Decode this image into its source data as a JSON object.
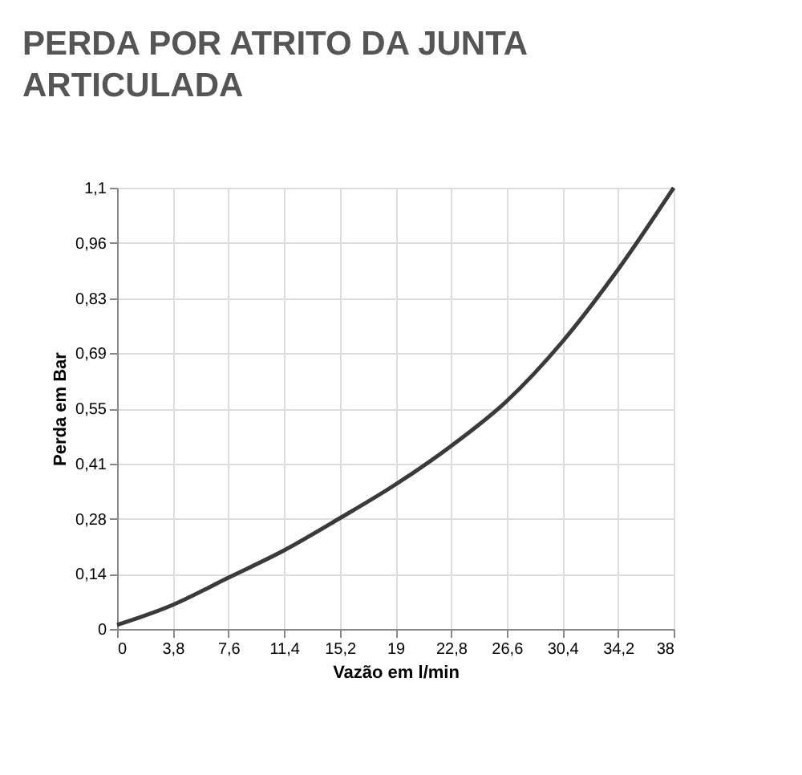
{
  "chart_data": {
    "type": "line",
    "title": [
      "PERDA POR ATRITO DA JUNTA",
      "ARTICULADA"
    ],
    "xlabel": "Vazão em l/min",
    "ylabel": "Perda em Bar",
    "x": [
      0,
      3.8,
      7.6,
      11.4,
      15.2,
      19,
      22.8,
      26.6,
      30.4,
      34.2,
      38
    ],
    "series": [
      {
        "color": "#3a3a3a",
        "values": [
          0.01,
          0.06,
          0.128,
          0.196,
          0.276,
          0.36,
          0.456,
          0.568,
          0.716,
          0.896,
          1.1
        ]
      }
    ],
    "xlim": [
      0,
      38
    ],
    "ylim": [
      0,
      1.1
    ],
    "xticks": [
      0,
      {
        "value": 3.8,
        "label": "3,8"
      },
      {
        "value": 7.6,
        "label": "7,6"
      },
      {
        "value": 11.4,
        "label": "11,4"
      },
      {
        "value": 15.2,
        "label": "15,2"
      },
      19,
      {
        "value": 22.8,
        "label": "22,8"
      },
      {
        "value": 26.6,
        "label": "26,6"
      },
      {
        "value": 30.4,
        "label": "30,4"
      },
      {
        "value": 34.2,
        "label": "34,2"
      },
      38
    ],
    "yticks": [
      0,
      {
        "value": 0.1375,
        "label": "0,14"
      },
      {
        "value": 0.275,
        "label": "0,28"
      },
      {
        "value": 0.4125,
        "label": "0,41"
      },
      {
        "value": 0.55,
        "label": "0,55"
      },
      {
        "value": 0.6875,
        "label": "0,69"
      },
      {
        "value": 0.825,
        "label": "0,83"
      },
      {
        "value": 0.9625,
        "label": "0,96"
      },
      {
        "value": 1.1,
        "label": "1,1"
      }
    ],
    "grid": true,
    "legend": false,
    "marker": "none",
    "line_style": "solid"
  }
}
